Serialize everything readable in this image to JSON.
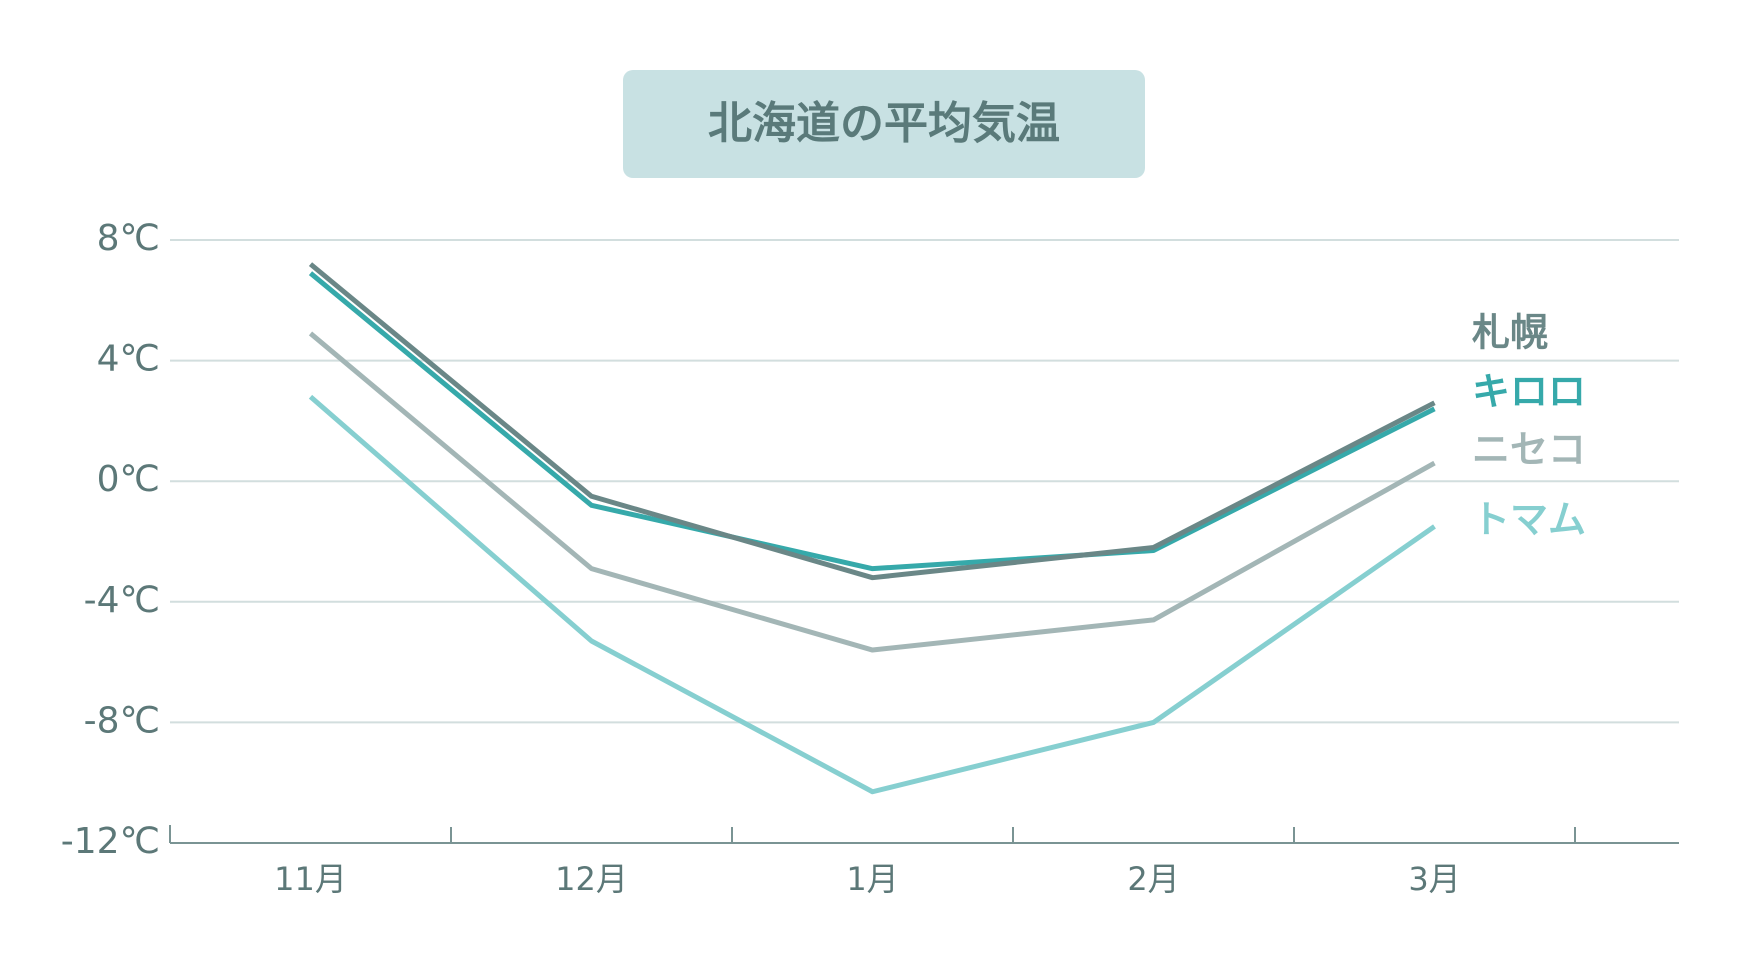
{
  "chart_data": {
    "type": "line",
    "title": "北海道の平均気温",
    "categories": [
      "11月",
      "12月",
      "1月",
      "2月",
      "3月"
    ],
    "series": [
      {
        "name": "札幌",
        "color": "#6a8787",
        "values": [
          7.2,
          -0.5,
          -3.2,
          -2.2,
          2.6
        ]
      },
      {
        "name": "キロロ",
        "color": "#36a9aa",
        "values": [
          6.9,
          -0.8,
          -2.9,
          -2.3,
          2.4
        ]
      },
      {
        "name": "ニセコ",
        "color": "#a3b6b6",
        "values": [
          4.9,
          -2.9,
          -5.6,
          -4.6,
          0.6
        ]
      },
      {
        "name": "トマム",
        "color": "#86cfd0",
        "values": [
          2.8,
          -5.3,
          -10.3,
          -8.0,
          -1.5
        ]
      }
    ],
    "ylim": [
      -12,
      8
    ],
    "yticks": [
      {
        "value": 8,
        "label": "8℃"
      },
      {
        "value": 4,
        "label": "4℃"
      },
      {
        "value": 0,
        "label": "0℃"
      },
      {
        "value": -4,
        "label": "-4℃"
      },
      {
        "value": -8,
        "label": "-8℃"
      },
      {
        "value": -12,
        "label": "-12℃"
      }
    ],
    "grid": true
  }
}
